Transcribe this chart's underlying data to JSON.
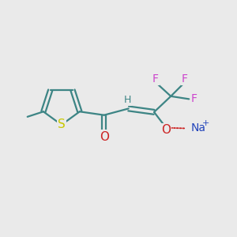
{
  "background_color": "#eaeaea",
  "bond_color": "#3d8585",
  "bond_width": 1.6,
  "atom_colors": {
    "C": "#3d8585",
    "H": "#3d8585",
    "S": "#c8c800",
    "F": "#cc44cc",
    "O": "#cc2222",
    "Na": "#2244bb"
  },
  "font_size_atoms": 10,
  "figsize": [
    3.0,
    3.0
  ],
  "dpi": 100
}
